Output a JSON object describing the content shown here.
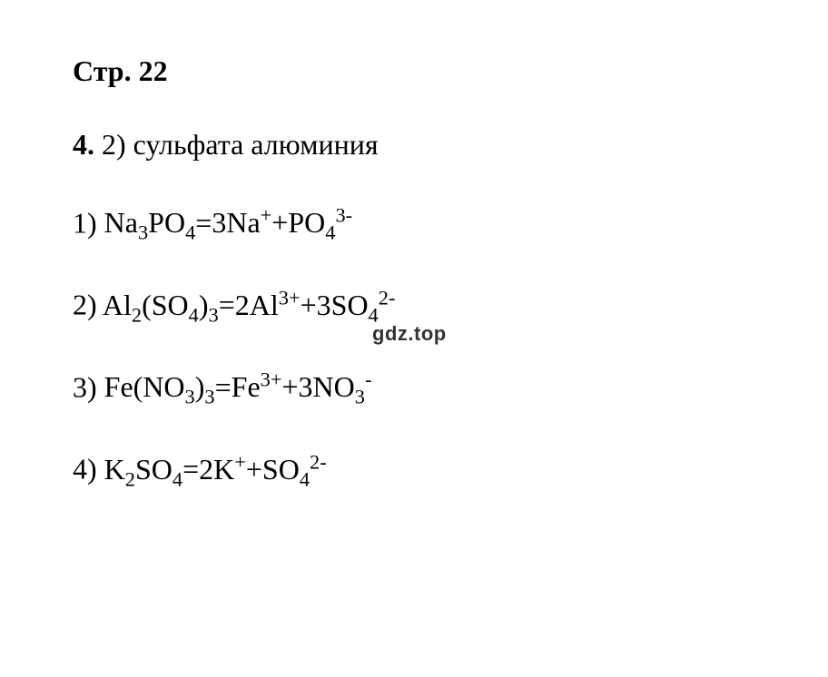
{
  "heading": "Стр. 22",
  "answer_line": {
    "number": "4.",
    "text": " 2) сульфата алюминия"
  },
  "watermark": "gdz.top",
  "equations": [
    {
      "number": "1) ",
      "lhs": "Na<sub>3</sub>PO<sub>4</sub>",
      "rhs": "3Na<sup>+</sup>+PO<sub>4</sub><sup>3-</sup>"
    },
    {
      "number": "2) ",
      "lhs": "Al<sub>2</sub>(SO<sub>4</sub>)<sub>3</sub>",
      "rhs": "2Al<sup>3+</sup>+3SO<sub>4</sub><sup>2-</sup>"
    },
    {
      "number": "3) ",
      "lhs": "Fe(NO<sub>3</sub>)<sub>3</sub>",
      "rhs": "Fe<sup>3+</sup>+3NO<sub>3</sub><sup>-</sup>"
    },
    {
      "number": "4) ",
      "lhs": "K<sub>2</sub>SO<sub>4</sub>",
      "rhs": "2K<sup>+</sup>+SO<sub>4</sub><sup>2-</sup>"
    }
  ],
  "styling": {
    "background_color": "#ffffff",
    "text_color": "#000000",
    "font_family": "Times New Roman",
    "heading_fontsize": 32,
    "body_fontsize": 32,
    "watermark_fontsize": 22,
    "watermark_color": "#333333",
    "line_spacing": 40
  }
}
